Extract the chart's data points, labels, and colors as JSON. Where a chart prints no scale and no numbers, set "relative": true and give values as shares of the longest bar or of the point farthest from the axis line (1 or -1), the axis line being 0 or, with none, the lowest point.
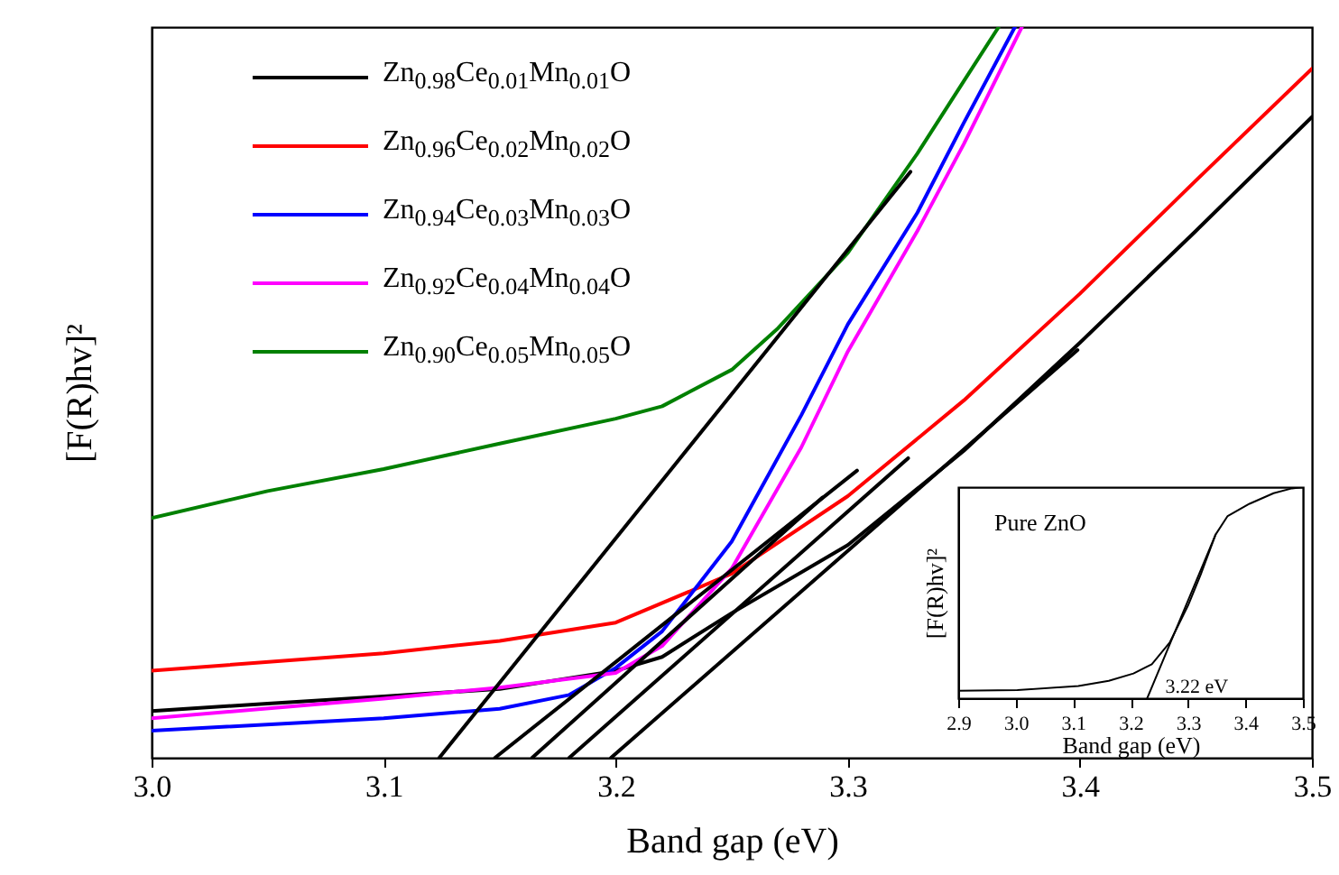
{
  "chart_data": [
    {
      "type": "line",
      "xlabel": "Band gap (eV)",
      "ylabel": "[F(R)hv]²",
      "relative": true,
      "legend": "top left",
      "grid": false,
      "line_style": "solid",
      "marker": "none",
      "xlim": [
        3.0,
        3.5
      ],
      "xticks": [
        {
          "value": 3.0,
          "label": "3.0"
        },
        {
          "value": 3.1,
          "label": "3.1"
        },
        {
          "value": 3.2,
          "label": "3.2"
        },
        {
          "value": 3.3,
          "label": "3.3"
        },
        {
          "value": 3.4,
          "label": "3.4"
        },
        {
          "value": 3.5,
          "label": "3.5"
        }
      ],
      "series": [
        {
          "name": "Zn$_{0.98}$Ce$_{0.01}$Mn$_{0.01}$O",
          "color": "#000000",
          "x": [
            3.0,
            3.05,
            3.1,
            3.15,
            3.2,
            3.22,
            3.25,
            3.3,
            3.35,
            3.4,
            3.45,
            3.5
          ],
          "values": [
            0.064,
            0.074,
            0.084,
            0.094,
            0.119,
            0.138,
            0.198,
            0.291,
            0.42,
            0.568,
            0.721,
            0.877
          ]
        },
        {
          "name": "Zn$_{0.96}$Ce$_{0.02}$Mn$_{0.02}$O",
          "color": "#ff0000",
          "x": [
            3.0,
            3.1,
            3.15,
            3.2,
            3.25,
            3.3,
            3.35,
            3.4,
            3.45,
            3.5
          ],
          "values": [
            0.119,
            0.143,
            0.16,
            0.185,
            0.252,
            0.358,
            0.489,
            0.635,
            0.79,
            0.943
          ]
        },
        {
          "name": "Zn$_{0.94}$Ce$_{0.03}$Mn$_{0.03}$O",
          "color": "#0000ff",
          "x": [
            3.0,
            3.1,
            3.15,
            3.18,
            3.2,
            3.22,
            3.25,
            3.28,
            3.3,
            3.33,
            3.35,
            3.372
          ],
          "values": [
            0.037,
            0.054,
            0.067,
            0.086,
            0.123,
            0.173,
            0.296,
            0.469,
            0.593,
            0.746,
            0.869,
            1.0
          ]
        },
        {
          "name": "Zn$_{0.92}$Ce$_{0.04}$Mn$_{0.04}$O",
          "color": "#ff00ff",
          "x": [
            3.0,
            3.1,
            3.15,
            3.2,
            3.22,
            3.25,
            3.28,
            3.3,
            3.33,
            3.35,
            3.375
          ],
          "values": [
            0.054,
            0.081,
            0.096,
            0.116,
            0.153,
            0.259,
            0.425,
            0.556,
            0.721,
            0.84,
            1.0
          ]
        },
        {
          "name": "Zn$_{0.90}$Ce$_{0.05}$Mn$_{0.05}$O",
          "color": "#008000",
          "x": [
            3.0,
            3.05,
            3.1,
            3.15,
            3.2,
            3.22,
            3.25,
            3.27,
            3.3,
            3.33,
            3.35,
            3.365
          ],
          "values": [
            0.328,
            0.365,
            0.395,
            0.43,
            0.464,
            0.481,
            0.531,
            0.588,
            0.691,
            0.827,
            0.926,
            1.0
          ]
        },
        {
          "type": "line",
          "color": "#000000",
          "x": [
            3.124,
            3.327
          ],
          "values": [
            0.0,
            0.802
          ]
        },
        {
          "type": "line",
          "color": "#000000",
          "x": [
            3.148,
            3.304
          ],
          "values": [
            0.0,
            0.393
          ]
        },
        {
          "type": "line",
          "color": "#000000",
          "x": [
            3.164,
            3.289
          ],
          "values": [
            0.0,
            0.356
          ]
        },
        {
          "type": "line",
          "color": "#000000",
          "x": [
            3.18,
            3.326
          ],
          "values": [
            0.0,
            0.41
          ]
        },
        {
          "type": "line",
          "color": "#000000",
          "x": [
            3.198,
            3.399
          ],
          "values": [
            0.0,
            0.558
          ]
        }
      ]
    },
    {
      "type": "line",
      "title": "Pure ZnO",
      "xlabel": "Band gap (eV)",
      "ylabel": "[F(R)hv]²",
      "relative": true,
      "grid": false,
      "line_style": "solid",
      "marker": "none",
      "xlim": [
        2.9,
        3.5
      ],
      "xticks": [
        {
          "value": 2.9,
          "label": "2.9"
        },
        {
          "value": 3.0,
          "label": "3.0"
        },
        {
          "value": 3.1,
          "label": "3.1"
        },
        {
          "value": 3.2,
          "label": "3.2"
        },
        {
          "value": 3.3,
          "label": "3.3"
        },
        {
          "value": 3.4,
          "label": "3.4"
        },
        {
          "value": 3.5,
          "label": "3.5"
        }
      ],
      "annotations": [
        {
          "text": "3.22 eV",
          "x": 3.229,
          "y": 0.0
        }
      ],
      "series": [
        {
          "color": "#000000",
          "x": [
            2.9,
            3.003,
            3.109,
            3.162,
            3.205,
            3.237,
            3.268,
            3.3,
            3.322,
            3.348,
            3.369,
            3.407,
            3.449,
            3.481,
            3.5
          ],
          "values": [
            0.035,
            0.038,
            0.058,
            0.082,
            0.117,
            0.161,
            0.263,
            0.439,
            0.585,
            0.775,
            0.863,
            0.921,
            0.971,
            0.994,
            1.0
          ]
        },
        {
          "type": "line",
          "color": "#000000",
          "x": [
            3.229,
            3.348
          ],
          "values": [
            0.0,
            0.775
          ]
        }
      ]
    }
  ]
}
